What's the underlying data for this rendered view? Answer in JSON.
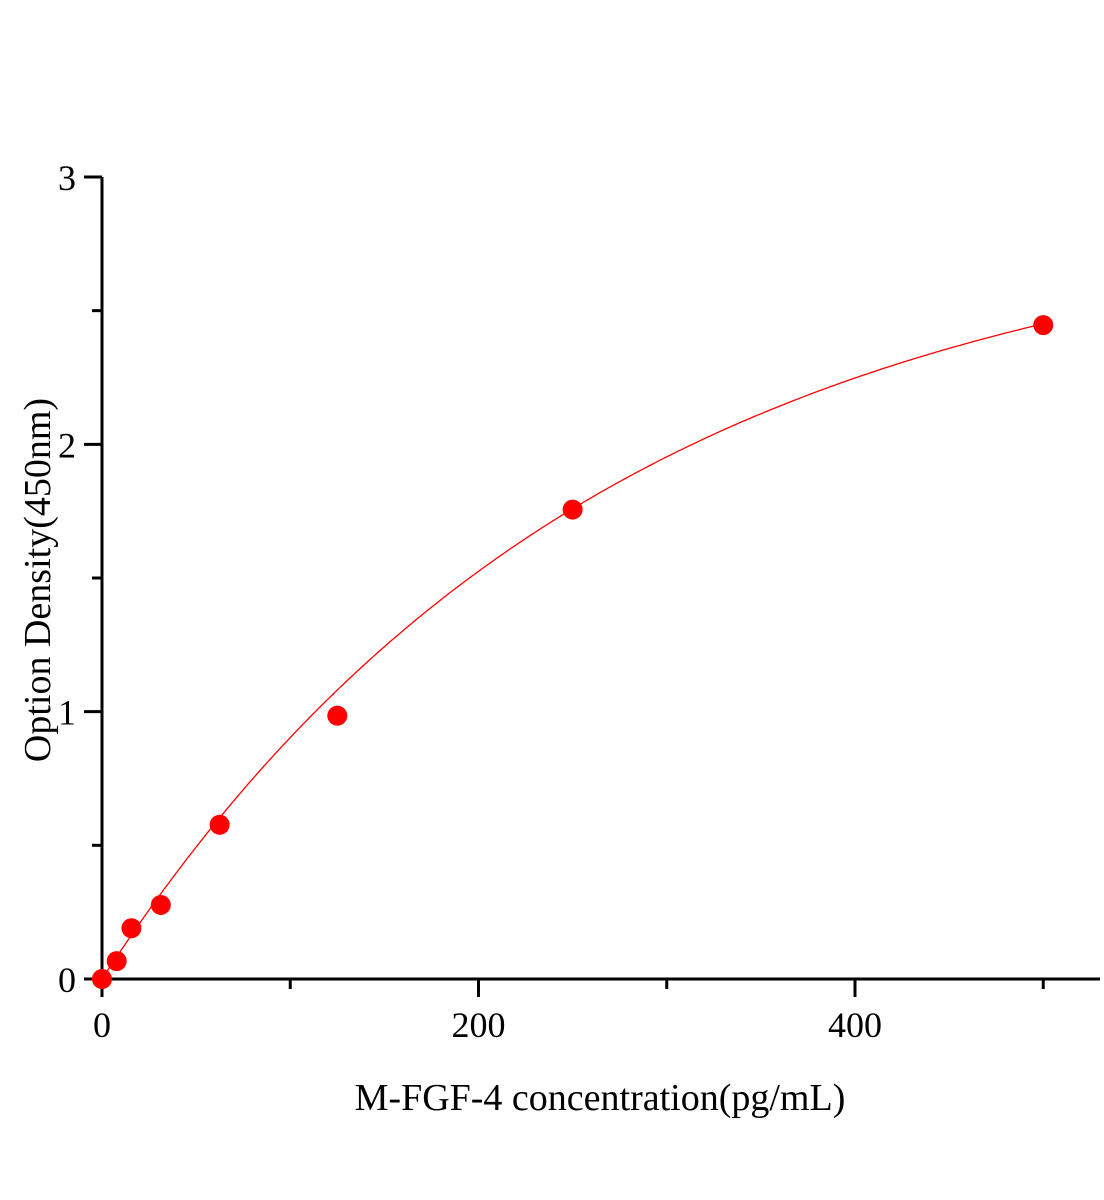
{
  "chart_data": {
    "type": "scatter",
    "title": "",
    "xlabel": "M-FGF-4 concentration(pg/mL)",
    "ylabel": "Option Density(450nm)",
    "xlim": [
      0,
      530
    ],
    "ylim": [
      0,
      3
    ],
    "x_ticks": [
      0,
      200,
      400
    ],
    "x_tick_labels": [
      "0",
      "200",
      "400"
    ],
    "y_ticks": [
      0,
      1,
      2,
      3
    ],
    "y_tick_labels": [
      "0",
      "1",
      "2",
      "3"
    ],
    "grid": false,
    "legend": "none",
    "series": [
      {
        "x": [
          0,
          7.8125,
          15.625,
          31.25,
          62.5,
          125,
          250,
          500
        ],
        "y": [
          0.0,
          0.067,
          0.19,
          0.277,
          0.577,
          0.985,
          1.756,
          2.446
        ],
        "marker": "circle",
        "fit_curve": true
      }
    ],
    "colors": {
      "points": "#ff0000",
      "curve": "#ff0000",
      "axes": "#000000"
    }
  }
}
